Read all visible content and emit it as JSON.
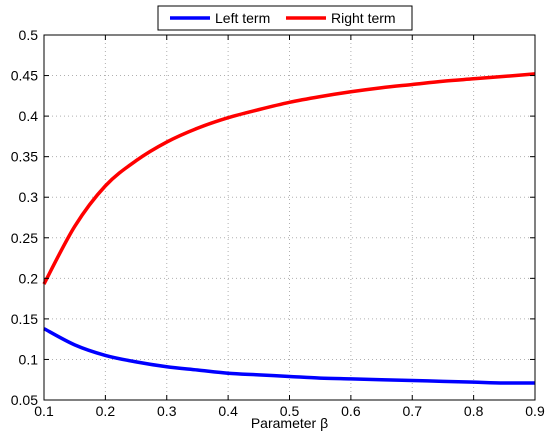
{
  "chart_data": {
    "type": "line",
    "title": "",
    "xlabel": "Parameter β",
    "ylabel": "",
    "xlim": [
      0.1,
      0.9
    ],
    "ylim": [
      0.05,
      0.5
    ],
    "xticks": [
      0.1,
      0.2,
      0.3,
      0.4,
      0.5,
      0.6,
      0.7,
      0.8,
      0.9
    ],
    "xtick_labels": [
      "0.1",
      "0.2",
      "0.3",
      "0.4",
      "0.5",
      "0.6",
      "0.7",
      "0.8",
      "0.9"
    ],
    "yticks": [
      0.05,
      0.1,
      0.15,
      0.2,
      0.25,
      0.3,
      0.35,
      0.4,
      0.45,
      0.5
    ],
    "ytick_labels": [
      "0.05",
      "0.1",
      "0.15",
      "0.2",
      "0.25",
      "0.3",
      "0.35",
      "0.4",
      "0.45",
      "0.5"
    ],
    "grid": true,
    "legend_position": "top-center",
    "x": [
      0.1,
      0.15,
      0.2,
      0.25,
      0.3,
      0.35,
      0.4,
      0.45,
      0.5,
      0.55,
      0.6,
      0.65,
      0.7,
      0.75,
      0.8,
      0.85,
      0.9
    ],
    "series": [
      {
        "name": "Left term",
        "color": "#0000ff",
        "values": [
          0.138,
          0.118,
          0.105,
          0.097,
          0.091,
          0.087,
          0.083,
          0.081,
          0.079,
          0.077,
          0.076,
          0.075,
          0.074,
          0.073,
          0.072,
          0.071,
          0.071
        ]
      },
      {
        "name": "Right term",
        "color": "#ff0000",
        "values": [
          0.193,
          0.264,
          0.314,
          0.345,
          0.368,
          0.385,
          0.398,
          0.408,
          0.417,
          0.424,
          0.43,
          0.435,
          0.439,
          0.443,
          0.446,
          0.449,
          0.452
        ]
      }
    ]
  }
}
